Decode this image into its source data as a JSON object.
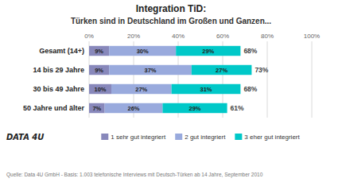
{
  "chart_data": {
    "type": "bar",
    "orientation": "horizontal",
    "stacked": true,
    "title": "Integration TiD:",
    "subtitle": "Türken sind in Deutschland im Großen und Ganzen...",
    "categories": [
      "Gesamt (14+)",
      "14 bis 29 Jahre",
      "30 bis 49 Jahre",
      "50 Jahre und älter"
    ],
    "series": [
      {
        "name": "1 sehr gut integriert",
        "color": "#8888bb",
        "values": [
          9,
          9,
          10,
          7
        ],
        "value_labels": [
          "9%",
          "9%",
          "10%",
          "7%"
        ]
      },
      {
        "name": "2 gut integriert",
        "color": "#99aadd",
        "values": [
          30,
          37,
          27,
          26
        ],
        "value_labels": [
          "30%",
          "37%",
          "27%",
          "26%"
        ]
      },
      {
        "name": "3 eher gut integriert",
        "color": "#00c8c8",
        "values": [
          29,
          27,
          31,
          29
        ],
        "value_labels": [
          "29%",
          "27%",
          "31%",
          "29%"
        ]
      }
    ],
    "totals": [
      68,
      73,
      68,
      61
    ],
    "total_labels": [
      "68%",
      "73%",
      "68%",
      "61%"
    ],
    "data_labels": true,
    "xlim": [
      0,
      100
    ],
    "xticks": [
      {
        "value": 0,
        "label": "0%"
      },
      {
        "value": 20,
        "label": "20%"
      },
      {
        "value": 40,
        "label": "40%"
      },
      {
        "value": 60,
        "label": "60%"
      },
      {
        "value": 80,
        "label": "80%"
      },
      {
        "value": 100,
        "label": "100%"
      }
    ],
    "grid": true,
    "legend": "bottom",
    "source": "Quelle: Data 4U GmbH - Basis: 1.003 telefonische Interviews mit Deutsch-Türken ab 14 Jahre, September 2010",
    "annotations": [
      "DATA 4U"
    ]
  }
}
